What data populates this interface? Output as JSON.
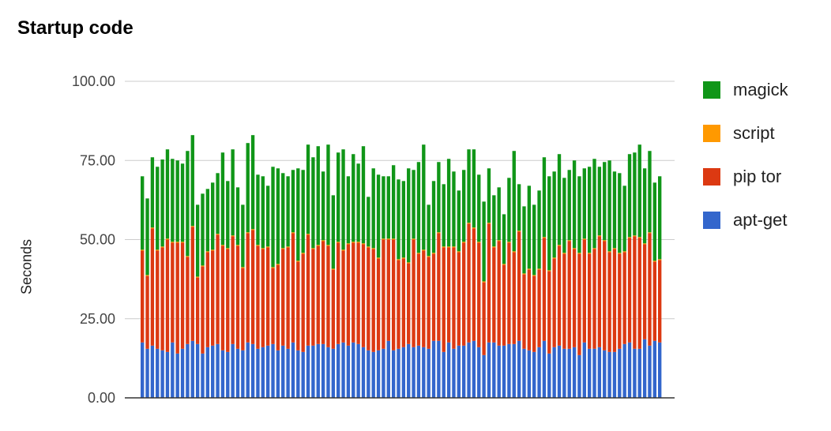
{
  "chart_data": {
    "type": "bar",
    "stacked": true,
    "title": "Startup code",
    "xlabel": "",
    "ylabel": "Seconds",
    "ylim": [
      0,
      100
    ],
    "yticks": [
      "0.00",
      "25.00",
      "50.00",
      "75.00",
      "100.00"
    ],
    "grid": true,
    "legend_position": "right",
    "series": [
      {
        "name": "apt-get",
        "color": "#3366cc",
        "values": [
          17.5,
          15.5,
          16.5,
          15.5,
          15,
          14.5,
          17.5,
          14,
          15.5,
          17,
          18,
          17,
          14,
          16,
          16.5,
          17,
          15,
          14.5,
          17,
          15.5,
          15,
          17.5,
          17,
          15.5,
          16,
          16.5,
          17,
          15,
          16.5,
          15.5,
          17.5,
          15,
          14.5,
          16.5,
          16.5,
          17,
          17,
          16,
          15.5,
          17,
          17.5,
          16.5,
          17.5,
          17,
          16,
          15,
          14.5,
          15,
          15.5,
          18,
          15,
          15.5,
          16,
          17,
          16,
          16.5,
          16,
          15.5,
          18,
          18,
          14.5,
          17.5,
          15.5,
          16.5,
          16.5,
          17.5,
          18,
          16,
          13.5,
          17.5,
          17.5,
          16.5,
          16.5,
          17,
          17,
          18,
          15.5,
          15,
          14.5,
          16,
          18,
          14,
          16,
          16.5,
          15.5,
          15.5,
          16,
          13.5,
          17.5,
          15.5,
          15.5,
          16,
          15,
          14.5,
          14.5,
          15.5,
          17,
          17.5,
          15.5,
          15.5,
          18.5,
          16.5,
          18,
          17.5
        ]
      },
      {
        "name": "pip tor",
        "color": "#dc3912",
        "values": [
          29,
          23,
          37,
          31,
          32.5,
          35.5,
          31.5,
          35,
          33.5,
          27.5,
          36,
          21,
          27.5,
          30,
          30,
          34.5,
          33,
          32.5,
          34,
          32.5,
          26,
          34.5,
          36,
          32.5,
          31,
          31,
          24,
          27,
          30.5,
          32,
          34.5,
          28,
          31,
          35,
          30.5,
          31,
          32.5,
          32,
          25,
          32,
          29,
          32,
          31.5,
          32,
          32.5,
          32.5,
          32.5,
          29,
          34.5,
          32,
          35,
          28,
          28,
          25.5,
          34,
          29,
          30.5,
          29,
          27.5,
          34,
          33,
          30,
          32,
          29.5,
          32.5,
          37.5,
          35.5,
          33,
          23,
          37.5,
          30,
          33,
          25.5,
          32,
          29,
          34.5,
          23.5,
          25.5,
          24,
          24.5,
          32.5,
          26,
          28,
          31.5,
          30,
          34,
          31,
          32,
          32.5,
          30,
          31.5,
          35,
          34.5,
          31.5,
          32.5,
          30,
          29,
          33,
          35.5,
          35,
          30,
          35.5,
          25,
          26
        ]
      },
      {
        "name": "script",
        "color": "#ff9900",
        "values": [
          0.3,
          0.3,
          0.3,
          0.3,
          0.3,
          0.3,
          0.3,
          0.3,
          0.3,
          0.3,
          0.3,
          0.3,
          0.3,
          0.3,
          0.3,
          0.3,
          0.3,
          0.3,
          0.3,
          0.3,
          0.3,
          0.3,
          0.3,
          0.3,
          0.3,
          0.3,
          0.3,
          0.3,
          0.3,
          0.3,
          0.3,
          0.3,
          0.3,
          0.3,
          0.3,
          0.3,
          0.3,
          0.3,
          0.3,
          0.3,
          0.3,
          0.3,
          0.3,
          0.3,
          0.3,
          0.3,
          0.3,
          0.3,
          0.3,
          0.3,
          0.3,
          0.3,
          0.3,
          0.3,
          0.3,
          0.3,
          0.3,
          0.3,
          0.3,
          0.3,
          0.3,
          0.3,
          0.3,
          0.3,
          0.3,
          0.3,
          0.3,
          0.3,
          0.3,
          0.3,
          0.3,
          0.3,
          0.3,
          0.3,
          0.3,
          0.3,
          0.3,
          0.3,
          0.3,
          0.3,
          0.3,
          0.3,
          0.3,
          0.3,
          0.3,
          0.3,
          0.3,
          0.3,
          0.3,
          0.3,
          0.3,
          0.3,
          0.3,
          0.3,
          0.3,
          0.3,
          0.3,
          0.3,
          0.3,
          0.3,
          0.3,
          0.3,
          0.3,
          0.3
        ]
      },
      {
        "name": "magick",
        "color": "#109618",
        "values": [
          23.2,
          24.2,
          22.2,
          26.2,
          27.5,
          28.2,
          26.2,
          25.7,
          24.7,
          33.2,
          28.7,
          22.7,
          22.7,
          19.7,
          21.2,
          19.2,
          29.2,
          21.2,
          27.2,
          18.2,
          19.7,
          28.2,
          29.7,
          22.2,
          22.7,
          19.2,
          31.7,
          30.2,
          23.7,
          22.2,
          19.7,
          29.2,
          26.2,
          28.2,
          28.7,
          31.2,
          21.7,
          31.7,
          23.2,
          28.2,
          31.7,
          21.2,
          27.7,
          24.7,
          30.7,
          15.7,
          25.2,
          26.2,
          19.7,
          19.7,
          23.2,
          25.2,
          24.2,
          29.7,
          21.7,
          28.7,
          33.2,
          16.2,
          22.7,
          22.2,
          19.7,
          27.7,
          23.7,
          19.2,
          22.7,
          23.2,
          24.7,
          21.2,
          25.2,
          17.2,
          16.2,
          16.7,
          15.7,
          20.2,
          31.7,
          14.7,
          21.2,
          26.2,
          22.2,
          24.7,
          25.2,
          29.7,
          27.2,
          28.7,
          23.7,
          22.2,
          27.7,
          24.2,
          22.2,
          27.2,
          28.2,
          21.7,
          24.7,
          28.7,
          24.2,
          25.2,
          20.7,
          26.2,
          26.2,
          29.2,
          23.7,
          25.7,
          24.7,
          26.2
        ]
      }
    ]
  },
  "colors": {
    "grid": "#cccccc",
    "axis": "#333333",
    "tick_text": "#444444"
  }
}
